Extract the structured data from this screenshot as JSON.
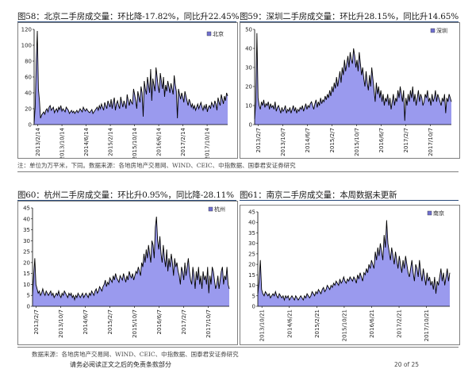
{
  "panels": [
    {
      "title": "图58：北京二手房成交量：环比降-17.82%，同比升22.45%"
    },
    {
      "title": "图59：深圳二手房成交量：环比升28.15%，同比升14.65%"
    },
    {
      "title": "图60：杭州二手房成交量：环比升0.95%，同比降-28.11%"
    },
    {
      "title": "图61：南京二手房成交量：本周数据未更新"
    }
  ],
  "notes": {
    "top": "注：单位为万平米，下同。数据来源：各地房地产交易网、WIND、CEIC、中指数据、国泰君安证券研究",
    "bottom": "数据来源：各地房地产交易网、WIND、CEIC、中指数据、国泰君安证券研究"
  },
  "footer": {
    "disclaimer": "请务必阅读正文之后的免责条款部分",
    "page": "20 of 25"
  },
  "colors": {
    "fill": "#9a9aee",
    "line": "#000000",
    "legend": "#7070d0"
  },
  "chart_data": [
    {
      "type": "area",
      "series": [
        {
          "name": "北京"
        }
      ],
      "x_ticks": [
        "2013/2/14",
        "2013/10/14",
        "2014/6/14",
        "2015/2/14",
        "2015/10/14",
        "2016/6/14",
        "2017/2/14",
        "2017/10/14"
      ],
      "ylim": [
        0,
        120
      ],
      "y_ticks": [
        0,
        20,
        40,
        60,
        80,
        100,
        120
      ],
      "values": [
        2,
        22,
        80,
        118,
        45,
        30,
        8,
        12,
        14,
        16,
        13,
        18,
        20,
        16,
        22,
        24,
        18,
        20,
        22,
        15,
        18,
        20,
        16,
        22,
        19,
        24,
        17,
        20,
        18,
        16,
        22,
        20,
        18,
        14,
        16,
        18,
        15,
        17,
        14,
        16,
        18,
        15,
        17,
        20,
        18,
        16,
        22,
        19,
        17,
        20,
        18,
        16,
        15,
        17,
        19,
        14,
        16,
        18,
        20,
        22,
        18,
        24,
        20,
        26,
        22,
        18,
        28,
        24,
        20,
        30,
        26,
        22,
        32,
        20,
        28,
        34,
        18,
        26,
        30,
        24,
        20,
        35,
        28,
        22,
        30,
        26,
        20,
        38,
        30,
        24,
        32,
        28,
        26,
        45,
        38,
        30,
        20,
        42,
        35,
        28,
        48,
        40,
        10,
        55,
        45,
        38,
        60,
        50,
        40,
        70,
        30,
        58,
        50,
        42,
        72,
        60,
        48,
        40,
        65,
        55,
        45,
        60,
        35,
        50,
        42,
        55,
        48,
        40,
        52,
        45,
        38,
        62,
        50,
        42,
        8,
        45,
        38,
        32,
        40,
        35,
        28,
        42,
        36,
        30,
        24,
        32,
        28,
        22,
        26,
        20,
        24,
        18,
        22,
        26,
        20,
        24,
        28,
        22,
        18,
        24,
        20,
        26,
        16,
        22,
        24,
        20,
        28,
        25,
        22,
        30,
        26,
        18,
        34,
        28,
        24,
        38,
        32,
        26,
        36,
        30,
        40,
        36
      ]
    },
    {
      "type": "area",
      "series": [
        {
          "name": "深圳"
        }
      ],
      "x_ticks": [
        "2013/2/7",
        "2013/10/7",
        "2014/6/7",
        "2015/2/7",
        "2015/10/7",
        "2016/6/7",
        "2017/2/7",
        "2017/10/7"
      ],
      "ylim": [
        0,
        50
      ],
      "y_ticks": [
        0,
        10,
        20,
        30,
        40,
        50
      ],
      "values": [
        3,
        12,
        48,
        14,
        10,
        8,
        12,
        10,
        13,
        9,
        11,
        10,
        12,
        8,
        11,
        9,
        10,
        8,
        12,
        7,
        9,
        10,
        8,
        6,
        9,
        7,
        8,
        10,
        6,
        8,
        7,
        9,
        6,
        8,
        10,
        7,
        9,
        6,
        8,
        7,
        9,
        8,
        10,
        7,
        9,
        11,
        8,
        10,
        9,
        11,
        12,
        10,
        8,
        11,
        13,
        9,
        12,
        10,
        14,
        11,
        13,
        12,
        15,
        13,
        16,
        14,
        18,
        15,
        20,
        17,
        22,
        19,
        25,
        20,
        24,
        28,
        22,
        30,
        26,
        34,
        28,
        32,
        36,
        30,
        38,
        34,
        32,
        40,
        36,
        30,
        34,
        28,
        38,
        32,
        26,
        30,
        24,
        20,
        28,
        22,
        18,
        26,
        20,
        30,
        24,
        18,
        12,
        22,
        16,
        20,
        14,
        18,
        12,
        16,
        10,
        14,
        12,
        16,
        10,
        14,
        8,
        12,
        16,
        10,
        14,
        12,
        18,
        14,
        20,
        16,
        12,
        18,
        2,
        14,
        10,
        16,
        12,
        18,
        14,
        20,
        12,
        16,
        10,
        14,
        18,
        12,
        16,
        14,
        10,
        12,
        16,
        14,
        18,
        12,
        14,
        10,
        16,
        12,
        14,
        18,
        12,
        16,
        14,
        12,
        10,
        14,
        12,
        16,
        6,
        14,
        12,
        16,
        14,
        12
      ]
    },
    {
      "type": "area",
      "series": [
        {
          "name": "杭州"
        }
      ],
      "x_ticks": [
        "2013/2/7",
        "2013/10/7",
        "2014/6/7",
        "2015/2/7",
        "2015/10/7",
        "2016/6/7",
        "2017/2/7",
        "2017/10/7"
      ],
      "ylim": [
        0,
        45
      ],
      "y_ticks": [
        0,
        5,
        10,
        15,
        20,
        25,
        30,
        35,
        40,
        45
      ],
      "values": [
        5,
        14,
        22,
        10,
        8,
        6,
        7,
        5,
        6,
        8,
        6,
        5,
        7,
        6,
        5,
        6,
        7,
        5,
        6,
        4,
        5,
        6,
        5,
        7,
        5,
        4,
        6,
        5,
        7,
        6,
        5,
        4,
        6,
        5,
        6,
        4,
        5,
        3,
        5,
        4,
        6,
        5,
        4,
        5,
        6,
        4,
        5,
        6,
        5,
        4,
        6,
        5,
        7,
        6,
        5,
        7,
        8,
        6,
        7,
        9,
        8,
        7,
        9,
        10,
        12,
        9,
        11,
        10,
        13,
        12,
        11,
        14,
        12,
        15,
        13,
        12,
        11,
        14,
        13,
        12,
        15,
        13,
        11,
        14,
        12,
        16,
        14,
        13,
        15,
        12,
        14,
        16,
        15,
        18,
        16,
        14,
        20,
        18,
        24,
        20,
        26,
        22,
        28,
        24,
        20,
        30,
        28,
        22,
        36,
        41,
        30,
        26,
        32,
        24,
        20,
        28,
        22,
        18,
        26,
        16,
        22,
        18,
        24,
        20,
        14,
        22,
        18,
        20,
        16,
        14,
        10,
        18,
        16,
        12,
        20,
        14,
        18,
        22,
        16,
        12,
        10,
        18,
        14,
        8,
        16,
        12,
        18,
        10,
        14,
        8,
        16,
        12,
        14,
        10,
        18,
        6,
        14,
        10,
        18,
        16,
        12,
        8,
        10,
        14,
        8,
        12,
        16,
        18,
        10,
        14,
        12,
        18,
        10,
        8
      ]
    },
    {
      "type": "area",
      "series": [
        {
          "name": "南京"
        }
      ],
      "x_ticks": [
        "2013/10/21",
        "2014/6/21",
        "2015/2/21",
        "2015/10/21",
        "2016/6/21",
        "2017/2/21",
        "2017/10/21"
      ],
      "ylim": [
        0,
        45
      ],
      "y_ticks": [
        0,
        5,
        10,
        15,
        20,
        25,
        30,
        35,
        40,
        45
      ],
      "values": [
        6,
        12,
        22,
        8,
        6,
        5,
        7,
        6,
        5,
        6,
        4,
        5,
        6,
        5,
        7,
        5,
        4,
        6,
        5,
        4,
        5,
        3,
        5,
        4,
        5,
        3,
        4,
        5,
        4,
        3,
        5,
        4,
        3,
        4,
        5,
        4,
        3,
        5,
        4,
        6,
        5,
        4,
        5,
        7,
        6,
        5,
        7,
        6,
        8,
        7,
        6,
        8,
        9,
        7,
        8,
        10,
        9,
        8,
        10,
        9,
        11,
        10,
        12,
        11,
        10,
        13,
        11,
        12,
        14,
        12,
        11,
        13,
        12,
        14,
        13,
        12,
        14,
        13,
        11,
        15,
        13,
        16,
        14,
        12,
        16,
        15,
        18,
        16,
        20,
        18,
        22,
        20,
        18,
        26,
        22,
        28,
        24,
        30,
        26,
        22,
        34,
        28,
        41,
        30,
        26,
        22,
        28,
        24,
        20,
        26,
        22,
        18,
        24,
        20,
        16,
        22,
        18,
        24,
        20,
        16,
        14,
        18,
        22,
        16,
        12,
        20,
        18,
        14,
        22,
        16,
        12,
        18,
        14,
        10,
        16,
        12,
        14,
        10,
        12,
        8,
        14,
        6,
        12,
        10,
        14,
        18,
        12,
        16,
        10,
        14,
        18,
        12,
        16
      ]
    }
  ]
}
